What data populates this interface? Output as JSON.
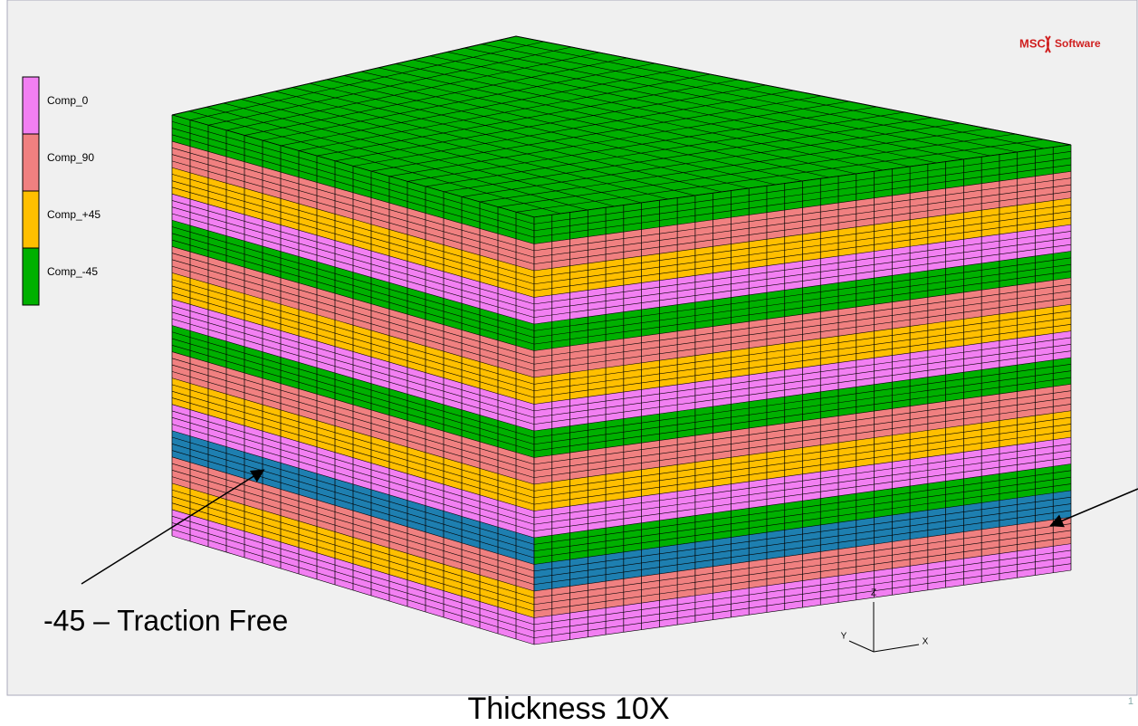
{
  "legend": {
    "items": [
      "Comp_0",
      "Comp_90",
      "Comp_+45",
      "Comp_-45"
    ]
  },
  "logo": {
    "brand": "MSC",
    "name": "Software"
  },
  "annotation": "-45 – Traction Free",
  "axes": {
    "z": "Z",
    "y": "Y",
    "x": "X"
  },
  "caption": "Thickness 10X",
  "page_number": "1"
}
